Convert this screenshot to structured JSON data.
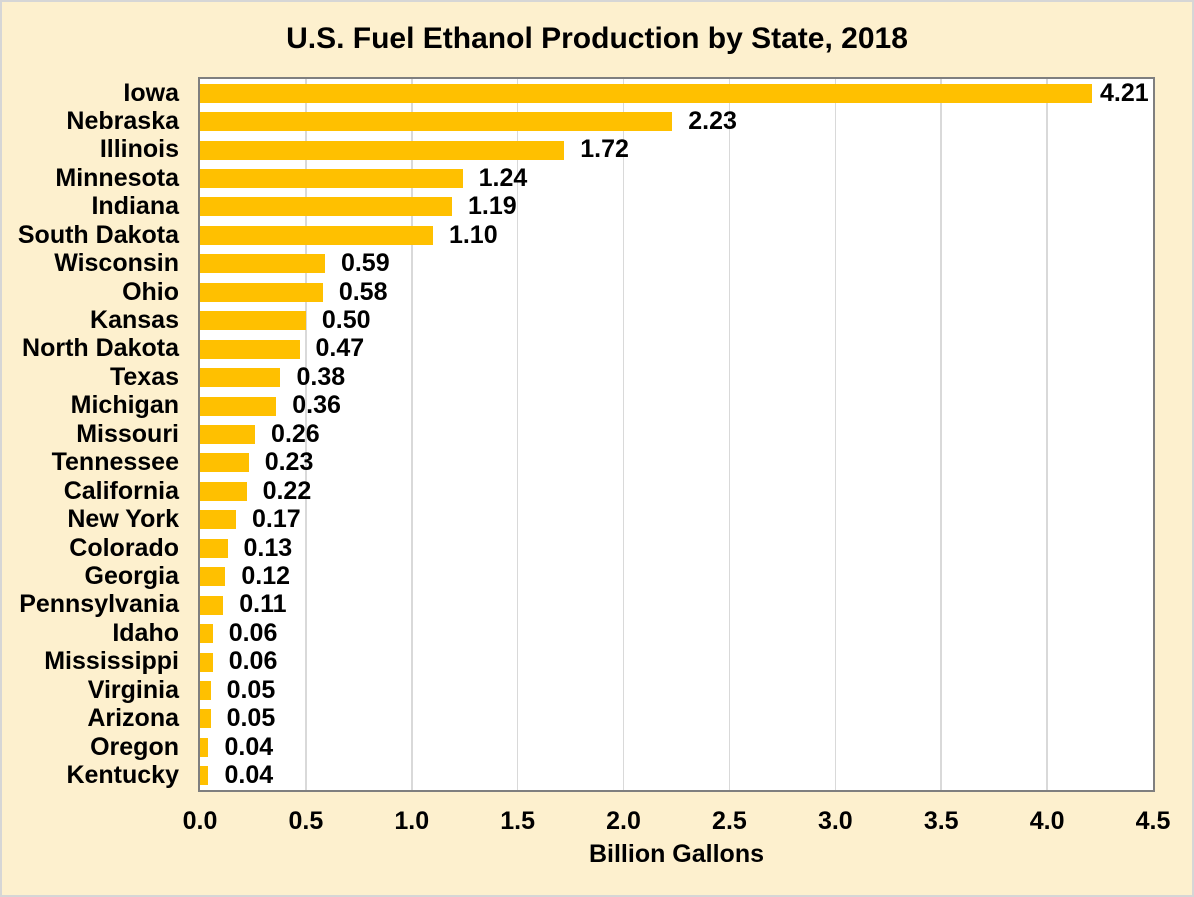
{
  "chart_data": {
    "type": "bar",
    "orientation": "horizontal",
    "title": "U.S. Fuel Ethanol Production by State, 2018",
    "xlabel": "Billion Gallons",
    "categories": [
      "Iowa",
      "Nebraska",
      "Illinois",
      "Minnesota",
      "Indiana",
      "South Dakota",
      "Wisconsin",
      "Ohio",
      "Kansas",
      "North Dakota",
      "Texas",
      "Michigan",
      "Missouri",
      "Tennessee",
      "California",
      "New York",
      "Colorado",
      "Georgia",
      "Pennsylvania",
      "Idaho",
      "Mississippi",
      "Virginia",
      "Arizona",
      "Oregon",
      "Kentucky"
    ],
    "values": [
      4.21,
      2.23,
      1.72,
      1.24,
      1.19,
      1.1,
      0.59,
      0.58,
      0.5,
      0.47,
      0.38,
      0.36,
      0.26,
      0.23,
      0.22,
      0.17,
      0.13,
      0.12,
      0.11,
      0.06,
      0.06,
      0.05,
      0.05,
      0.04,
      0.04
    ],
    "value_labels": [
      "4.21",
      "2.23",
      "1.72",
      "1.24",
      "1.19",
      "1.10",
      "0.59",
      "0.58",
      "0.50",
      "0.47",
      "0.38",
      "0.36",
      "0.26",
      "0.23",
      "0.22",
      "0.17",
      "0.13",
      "0.12",
      "0.11",
      "0.06",
      "0.06",
      "0.05",
      "0.05",
      "0.04",
      "0.04"
    ],
    "xlim": [
      0,
      4.5
    ],
    "xtick_labels": [
      "0.0",
      "0.5",
      "1.0",
      "1.5",
      "2.0",
      "2.5",
      "3.0",
      "3.5",
      "4.0",
      "4.5"
    ],
    "grid": "vertical",
    "legend": "none",
    "colors": {
      "bar": "#FFC000",
      "page_background": "#FDF0CE",
      "plot_background": "#FFFFFF",
      "gridline": "#D9D9D9",
      "plot_border": "#7F7F7F",
      "page_border": "#D6D6D6",
      "text": "#000000"
    }
  }
}
